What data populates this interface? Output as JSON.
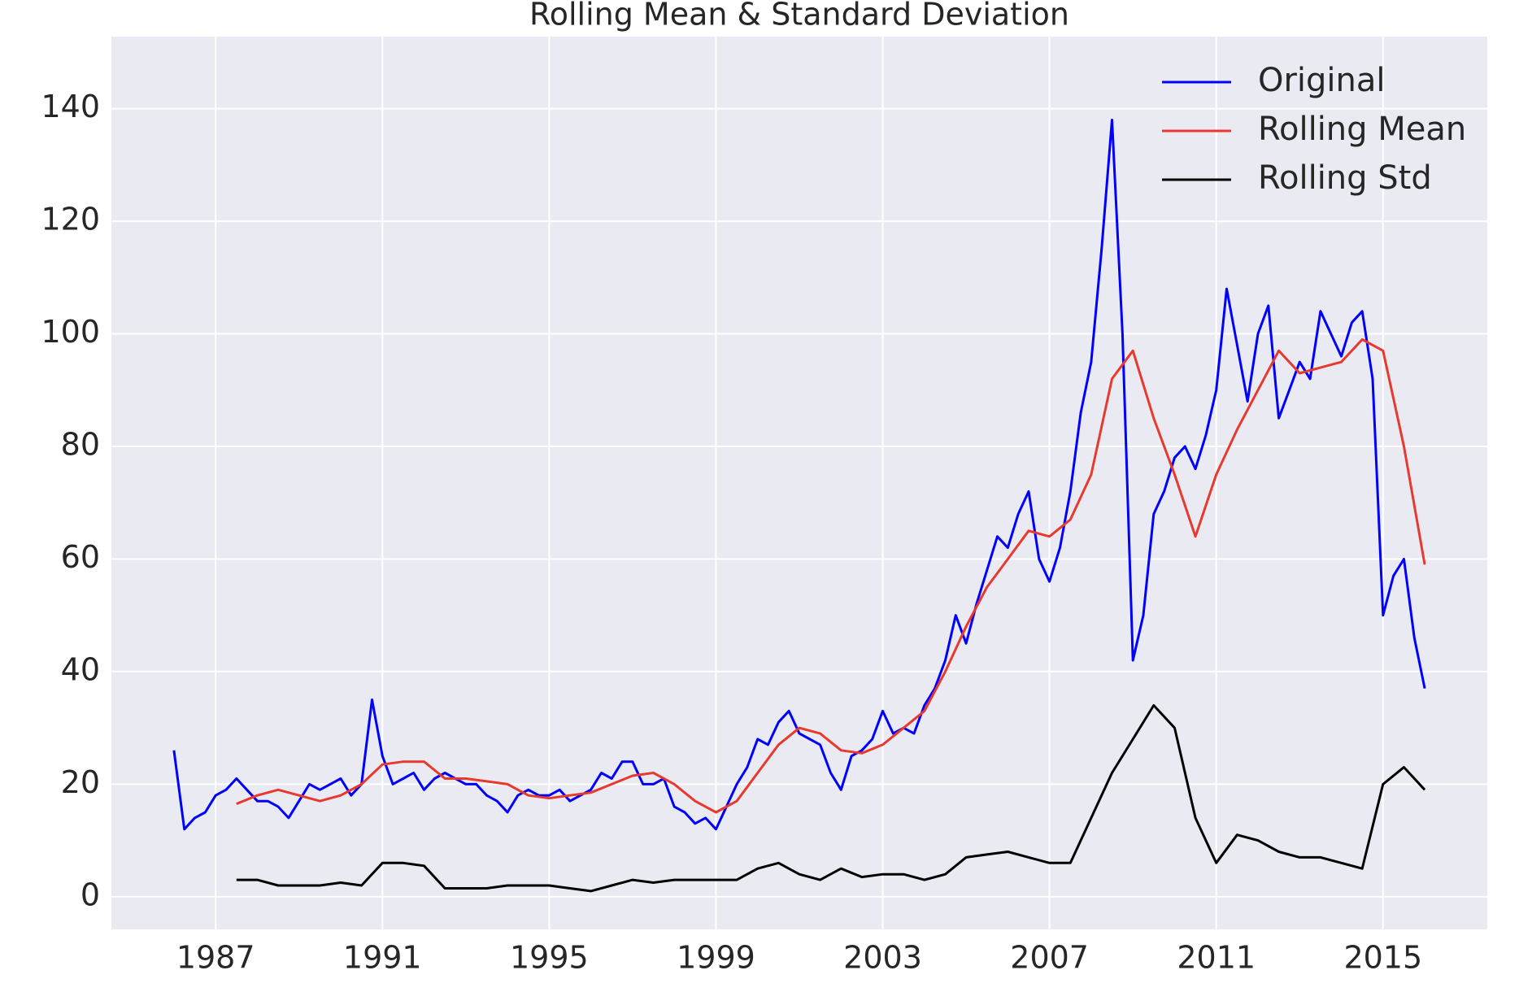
{
  "chart_data": {
    "type": "line",
    "title": "Rolling Mean & Standard Deviation",
    "xlim": [
      1984.5,
      2017.5
    ],
    "xticks": [
      1987,
      1991,
      1995,
      1999,
      2003,
      2007,
      2011,
      2015
    ],
    "ylim": [
      -5.8,
      152.8
    ],
    "yticks": [
      0,
      20,
      40,
      60,
      80,
      100,
      120,
      140
    ],
    "grid": true,
    "legend": "upper right",
    "series": [
      {
        "name": "Original",
        "color": "#0000ff",
        "x": [
          1986.0,
          1986.25,
          1986.5,
          1986.75,
          1987.0,
          1987.25,
          1987.5,
          1987.75,
          1988.0,
          1988.25,
          1988.5,
          1988.75,
          1989.0,
          1989.25,
          1989.5,
          1989.75,
          1990.0,
          1990.25,
          1990.5,
          1990.75,
          1991.0,
          1991.25,
          1991.5,
          1991.75,
          1992.0,
          1992.25,
          1992.5,
          1992.75,
          1993.0,
          1993.25,
          1993.5,
          1993.75,
          1994.0,
          1994.25,
          1994.5,
          1994.75,
          1995.0,
          1995.25,
          1995.5,
          1995.75,
          1996.0,
          1996.25,
          1996.5,
          1996.75,
          1997.0,
          1997.25,
          1997.5,
          1997.75,
          1998.0,
          1998.25,
          1998.5,
          1998.75,
          1999.0,
          1999.25,
          1999.5,
          1999.75,
          2000.0,
          2000.25,
          2000.5,
          2000.75,
          2001.0,
          2001.25,
          2001.5,
          2001.75,
          2002.0,
          2002.25,
          2002.5,
          2002.75,
          2003.0,
          2003.25,
          2003.5,
          2003.75,
          2004.0,
          2004.25,
          2004.5,
          2004.75,
          2005.0,
          2005.25,
          2005.5,
          2005.75,
          2006.0,
          2006.25,
          2006.5,
          2006.75,
          2007.0,
          2007.25,
          2007.5,
          2007.75,
          2008.0,
          2008.25,
          2008.5,
          2008.75,
          2009.0,
          2009.25,
          2009.5,
          2009.75,
          2010.0,
          2010.25,
          2010.5,
          2010.75,
          2011.0,
          2011.25,
          2011.5,
          2011.75,
          2012.0,
          2012.25,
          2012.5,
          2012.75,
          2013.0,
          2013.25,
          2013.5,
          2013.75,
          2014.0,
          2014.25,
          2014.5,
          2014.75,
          2015.0,
          2015.25,
          2015.5,
          2015.75,
          2016.0
        ],
        "values": [
          26,
          12,
          14,
          15,
          18,
          19,
          21,
          19,
          17,
          17,
          16,
          14,
          17,
          20,
          19,
          20,
          21,
          18,
          20,
          35,
          25,
          20,
          21,
          22,
          19,
          21,
          22,
          21,
          20,
          20,
          18,
          17,
          15,
          18,
          19,
          18,
          18,
          19,
          17,
          18,
          19,
          22,
          21,
          24,
          24,
          20,
          20,
          21,
          16,
          15,
          13,
          14,
          12,
          16,
          20,
          23,
          28,
          27,
          31,
          33,
          29,
          28,
          27,
          22,
          19,
          25,
          26,
          28,
          33,
          29,
          30,
          29,
          34,
          37,
          42,
          50,
          45,
          52,
          58,
          64,
          62,
          68,
          72,
          60,
          56,
          62,
          72,
          86,
          95,
          115,
          138,
          100,
          42,
          50,
          68,
          72,
          78,
          80,
          76,
          82,
          90,
          108,
          98,
          88,
          100,
          105,
          85,
          90,
          95,
          92,
          104,
          100,
          96,
          102,
          104,
          92,
          50,
          57,
          60,
          46,
          37
        ]
      },
      {
        "name": "Rolling Mean",
        "color": "#e8392e",
        "x": [
          1987.5,
          1988.0,
          1988.5,
          1989.0,
          1989.5,
          1990.0,
          1990.5,
          1991.0,
          1991.5,
          1992.0,
          1992.5,
          1993.0,
          1993.5,
          1994.0,
          1994.5,
          1995.0,
          1995.5,
          1996.0,
          1996.5,
          1997.0,
          1997.5,
          1998.0,
          1998.5,
          1999.0,
          1999.5,
          2000.0,
          2000.5,
          2001.0,
          2001.5,
          2002.0,
          2002.5,
          2003.0,
          2003.5,
          2004.0,
          2004.5,
          2005.0,
          2005.5,
          2006.0,
          2006.5,
          2007.0,
          2007.5,
          2008.0,
          2008.5,
          2009.0,
          2009.5,
          2010.0,
          2010.5,
          2011.0,
          2011.5,
          2012.0,
          2012.5,
          2013.0,
          2013.5,
          2014.0,
          2014.5,
          2015.0,
          2015.5,
          2016.0
        ],
        "values": [
          16.5,
          18,
          19,
          18,
          17,
          18,
          20,
          23.5,
          24,
          24,
          21,
          21,
          20.5,
          20,
          18,
          17.5,
          18,
          18.5,
          20,
          21.5,
          22,
          20,
          17,
          15,
          17,
          22,
          27,
          30,
          29,
          26,
          25.5,
          27,
          30,
          33,
          40,
          48,
          55,
          60,
          65,
          64,
          67,
          75,
          92,
          97,
          85,
          75,
          64,
          75,
          83,
          90,
          97,
          93,
          94,
          95,
          99,
          97,
          80,
          59
        ]
      },
      {
        "name": "Rolling Std",
        "color": "#000000",
        "x": [
          1987.5,
          1988.0,
          1988.5,
          1989.0,
          1989.5,
          1990.0,
          1990.5,
          1991.0,
          1991.5,
          1992.0,
          1992.5,
          1993.0,
          1993.5,
          1994.0,
          1994.5,
          1995.0,
          1995.5,
          1996.0,
          1996.5,
          1997.0,
          1997.5,
          1998.0,
          1998.5,
          1999.0,
          1999.5,
          2000.0,
          2000.5,
          2001.0,
          2001.5,
          2002.0,
          2002.5,
          2003.0,
          2003.5,
          2004.0,
          2004.5,
          2005.0,
          2005.5,
          2006.0,
          2006.5,
          2007.0,
          2007.5,
          2008.0,
          2008.5,
          2009.0,
          2009.5,
          2010.0,
          2010.5,
          2011.0,
          2011.5,
          2012.0,
          2012.5,
          2013.0,
          2013.5,
          2014.0,
          2014.5,
          2015.0,
          2015.5,
          2016.0
        ],
        "values": [
          3,
          3,
          2,
          2,
          2,
          2.5,
          2,
          6,
          6,
          5.5,
          1.5,
          1.5,
          1.5,
          2,
          2,
          2,
          1.5,
          1,
          2,
          3,
          2.5,
          3,
          3,
          3,
          3,
          5,
          6,
          4,
          3,
          5,
          3.5,
          4,
          4,
          3,
          4,
          7,
          7.5,
          8,
          7,
          6,
          6,
          14,
          22,
          28,
          34,
          30,
          14,
          6,
          11,
          10,
          8,
          7,
          7,
          6,
          5,
          20,
          23,
          19
        ]
      }
    ]
  }
}
